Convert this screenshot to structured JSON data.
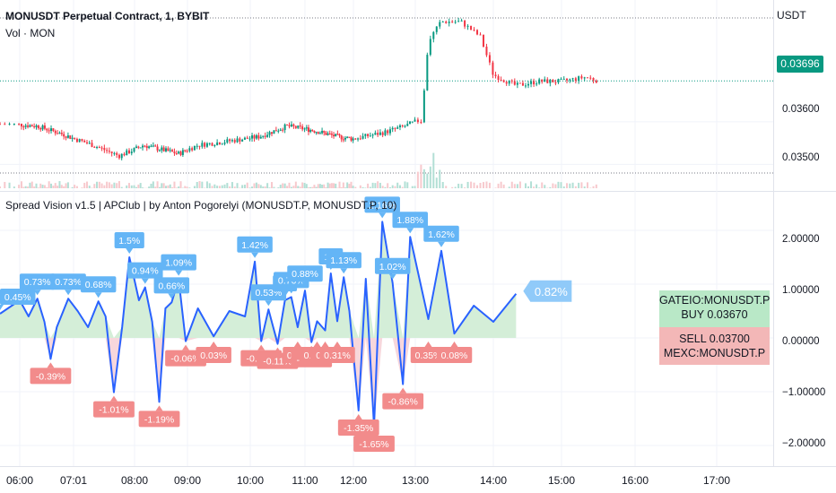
{
  "header": {
    "symbol_title": "MONUSDT Perpetual Contract, 1, BYBIT",
    "volume_label": "Vol · MON",
    "currency": "USDT",
    "last_price": "0.03696",
    "indicator_title": "Spread Vision v1.5 | APClub | by Anton Pogorelyi  (MONUSDT.P, MONUSDT.P, 10)"
  },
  "colors": {
    "up": "#089981",
    "down": "#f23645",
    "spread_line": "#2962ff",
    "label_blue": "#64b5f6",
    "label_red": "#f28b8b",
    "fill_green": "#d4eed8",
    "fill_red": "#f7d7dc"
  },
  "price_axis": {
    "ticks": [
      "0.03600",
      "0.03500"
    ]
  },
  "spread_axis": {
    "ticks": [
      "2.00000",
      "1.00000",
      "0.00000",
      "−1.00000",
      "−2.00000"
    ]
  },
  "time_axis": {
    "ticks": [
      "06:00",
      "07:01",
      "08:00",
      "09:00",
      "10:00",
      "11:00",
      "12:00",
      "13:00",
      "14:00",
      "15:00",
      "16:00",
      "17:00"
    ]
  },
  "arbitrage_box": {
    "buy_exchange": "GATEIO:MONUSDT.P",
    "buy_price": "BUY 0.03670",
    "sell_price": "SELL 0.03700",
    "sell_exchange": "MEXC:MONUSDT.P",
    "current_spread": "0.82%"
  },
  "chart_data": [
    {
      "type": "candlestick",
      "title": "MONUSDT Perpetual Contract, 1, BYBIT",
      "x_range": [
        "05:50",
        "17:45"
      ],
      "ylim": [
        0.03465,
        0.03865
      ],
      "y_ticks": [
        0.036,
        0.035
      ],
      "last_price": 0.03696,
      "close_path": [
        [
          "05:50",
          0.03595
        ],
        [
          "06:20",
          0.0359
        ],
        [
          "06:50",
          0.0357
        ],
        [
          "07:20",
          0.03545
        ],
        [
          "07:45",
          0.0352
        ],
        [
          "08:10",
          0.03545
        ],
        [
          "08:30",
          0.03535
        ],
        [
          "08:50",
          0.03525
        ],
        [
          "09:10",
          0.03545
        ],
        [
          "09:40",
          0.03555
        ],
        [
          "10:10",
          0.03565
        ],
        [
          "10:40",
          0.0359
        ],
        [
          "11:10",
          0.0358
        ],
        [
          "11:40",
          0.03565
        ],
        [
          "12:00",
          0.0356
        ],
        [
          "12:30",
          0.03575
        ],
        [
          "12:50",
          0.0359
        ],
        [
          "13:05",
          0.03605
        ],
        [
          "13:10",
          0.0379
        ],
        [
          "13:20",
          0.03835
        ],
        [
          "13:35",
          0.03835
        ],
        [
          "13:50",
          0.038
        ],
        [
          "14:00",
          0.0371
        ],
        [
          "14:20",
          0.03685
        ],
        [
          "14:40",
          0.03695
        ],
        [
          "15:00",
          0.03695
        ],
        [
          "15:20",
          0.03705
        ],
        [
          "15:30",
          0.03696
        ]
      ]
    },
    {
      "type": "line",
      "title": "Spread Vision v1.5 | APClub | by Anton Pogorelyi  (MONUSDT.P, MONUSDT.P, 10)",
      "x_range": [
        "05:50",
        "17:45"
      ],
      "ylim": [
        -2.25,
        2.45
      ],
      "y_ticks": [
        2,
        1,
        0,
        -1,
        -2
      ],
      "series": [
        {
          "values": [
            [
              "05:50",
              0.45
            ],
            [
              "06:00",
              0.7
            ],
            [
              "06:10",
              0.4
            ],
            [
              "06:20",
              0.73
            ],
            [
              "06:28",
              0.3
            ],
            [
              "06:35",
              -0.39
            ],
            [
              "06:42",
              0.2
            ],
            [
              "06:55",
              0.73
            ],
            [
              "07:05",
              0.5
            ],
            [
              "07:15",
              0.2
            ],
            [
              "07:25",
              0.68
            ],
            [
              "07:32",
              0.4
            ],
            [
              "07:40",
              -1.01
            ],
            [
              "07:48",
              0.2
            ],
            [
              "07:55",
              1.5
            ],
            [
              "08:05",
              0.7
            ],
            [
              "08:12",
              0.94
            ],
            [
              "08:20",
              0.3
            ],
            [
              "08:28",
              -1.19
            ],
            [
              "08:35",
              0.55
            ],
            [
              "08:42",
              0.66
            ],
            [
              "08:50",
              1.09
            ],
            [
              "08:58",
              -0.06
            ],
            [
              "09:10",
              0.55
            ],
            [
              "09:25",
              0.03
            ],
            [
              "09:40",
              0.5
            ],
            [
              "09:55",
              0.4
            ],
            [
              "10:05",
              1.42
            ],
            [
              "10:12",
              -0.06
            ],
            [
              "10:20",
              0.53
            ],
            [
              "10:30",
              -0.11
            ],
            [
              "10:38",
              0.7
            ],
            [
              "10:45",
              0.76
            ],
            [
              "10:52",
              0.2
            ],
            [
              "11:00",
              0.88
            ],
            [
              "11:08",
              -0.08
            ],
            [
              "11:15",
              0.31
            ],
            [
              "11:25",
              0.14
            ],
            [
              "11:32",
              1.2
            ],
            [
              "11:40",
              0.31
            ],
            [
              "11:48",
              1.13
            ],
            [
              "11:55",
              0.5
            ],
            [
              "12:05",
              -1.35
            ],
            [
              "12:12",
              1.1
            ],
            [
              "12:20",
              -1.65
            ],
            [
              "12:28",
              2.16
            ],
            [
              "12:38",
              1.02
            ],
            [
              "12:48",
              -0.86
            ],
            [
              "12:55",
              1.88
            ],
            [
              "13:10",
              0.35
            ],
            [
              "13:20",
              1.62
            ],
            [
              "13:30",
              0.08
            ],
            [
              "13:45",
              0.6
            ],
            [
              "14:00",
              0.3
            ],
            [
              "14:20",
              0.82
            ]
          ]
        }
      ],
      "labels": [
        {
          "x": "05:50",
          "y": 0.45,
          "text": "0.45%",
          "kind": "high"
        },
        {
          "x": "06:20",
          "y": 0.73,
          "text": "0.73%",
          "kind": "high"
        },
        {
          "x": "06:55",
          "y": 0.73,
          "text": "0.73%",
          "kind": "high"
        },
        {
          "x": "07:25",
          "y": 0.68,
          "text": "0.68%",
          "kind": "high"
        },
        {
          "x": "07:55",
          "y": 1.5,
          "text": "1.5%",
          "kind": "high"
        },
        {
          "x": "08:12",
          "y": 0.94,
          "text": "0.94%",
          "kind": "high"
        },
        {
          "x": "08:42",
          "y": 0.66,
          "text": "0.66%",
          "kind": "high"
        },
        {
          "x": "08:50",
          "y": 1.09,
          "text": "1.09%",
          "kind": "high"
        },
        {
          "x": "10:05",
          "y": 1.42,
          "text": "1.42%",
          "kind": "high"
        },
        {
          "x": "10:20",
          "y": 0.53,
          "text": "0.53%",
          "kind": "high"
        },
        {
          "x": "10:38",
          "y": 0.7,
          "text": "0.7",
          "kind": "high"
        },
        {
          "x": "10:45",
          "y": 0.76,
          "text": "0.76%",
          "kind": "high"
        },
        {
          "x": "11:00",
          "y": 0.88,
          "text": "0.88%",
          "kind": "high"
        },
        {
          "x": "11:32",
          "y": 1.2,
          "text": "1.2",
          "kind": "high"
        },
        {
          "x": "11:48",
          "y": 1.13,
          "text": "1.13%",
          "kind": "high"
        },
        {
          "x": "12:28",
          "y": 2.16,
          "text": "2.16%",
          "kind": "high"
        },
        {
          "x": "12:38",
          "y": 1.02,
          "text": "1.02%",
          "kind": "high"
        },
        {
          "x": "12:55",
          "y": 1.88,
          "text": "1.88%",
          "kind": "high"
        },
        {
          "x": "13:20",
          "y": 1.62,
          "text": "1.62%",
          "kind": "high"
        },
        {
          "x": "06:35",
          "y": -0.39,
          "text": "-0.39%",
          "kind": "low"
        },
        {
          "x": "07:40",
          "y": -1.01,
          "text": "-1.01%",
          "kind": "low"
        },
        {
          "x": "08:28",
          "y": -1.19,
          "text": "-1.19%",
          "kind": "low"
        },
        {
          "x": "08:58",
          "y": -0.06,
          "text": "-0.06%",
          "kind": "low"
        },
        {
          "x": "09:25",
          "y": 0.03,
          "text": "0.03%",
          "kind": "low"
        },
        {
          "x": "10:12",
          "y": -0.06,
          "text": "-0.06%",
          "kind": "low"
        },
        {
          "x": "10:30",
          "y": -0.11,
          "text": "-0.11%",
          "kind": "low"
        },
        {
          "x": "10:52",
          "y": 0.2,
          "text": "0.2%",
          "kind": "low"
        },
        {
          "x": "11:08",
          "y": -0.08,
          "text": "-0.08%",
          "kind": "low"
        },
        {
          "x": "11:15",
          "y": 0.31,
          "text": "0.31%",
          "kind": "low"
        },
        {
          "x": "11:25",
          "y": 0.14,
          "text": "0.14",
          "kind": "low"
        },
        {
          "x": "11:40",
          "y": 0.31,
          "text": "0.31%",
          "kind": "low"
        },
        {
          "x": "12:05",
          "y": -1.35,
          "text": "-1.35%",
          "kind": "low"
        },
        {
          "x": "12:20",
          "y": -1.65,
          "text": "-1.65%",
          "kind": "low"
        },
        {
          "x": "12:48",
          "y": -0.86,
          "text": "-0.86%",
          "kind": "low"
        },
        {
          "x": "13:10",
          "y": 0.35,
          "text": "0.35%",
          "kind": "low"
        },
        {
          "x": "13:30",
          "y": 0.08,
          "text": "0.08%",
          "kind": "low"
        }
      ]
    }
  ]
}
